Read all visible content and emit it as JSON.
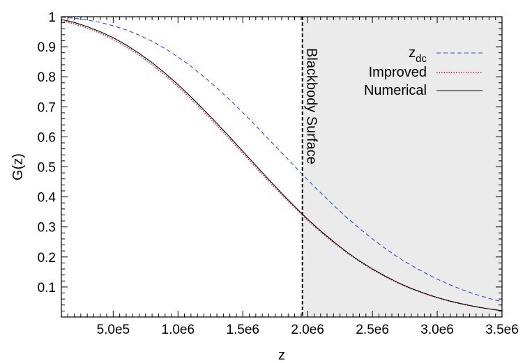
{
  "chart_data": {
    "type": "line",
    "title": "",
    "xlabel": "z",
    "ylabel": "G(z)",
    "xlim": [
      100000,
      3500000
    ],
    "ylim": [
      0,
      1
    ],
    "grid": false,
    "legend_position": "top-right",
    "x_ticks": [
      500000,
      1000000,
      1500000,
      2000000,
      2500000,
      3000000,
      3500000
    ],
    "x_tick_labels": [
      "5.0e5",
      "1.0e6",
      "1.5e6",
      "2.0e6",
      "2.5e6",
      "3.0e6",
      "3.5e6"
    ],
    "y_ticks": [
      0.1,
      0.2,
      0.3,
      0.4,
      0.5,
      0.6,
      0.7,
      0.8,
      0.9,
      1
    ],
    "y_tick_labels": [
      "0.1",
      "0.2",
      "0.3",
      "0.4",
      "0.5",
      "0.6",
      "0.7",
      "0.8",
      "0.9",
      "1"
    ],
    "shaded_region": {
      "x_from": 1960000,
      "x_to": 3500000,
      "color": "#ebebeb"
    },
    "vline": {
      "x": 1960000,
      "label": "Blackbody Surface"
    },
    "series": [
      {
        "name": "z_dc",
        "name_main": "z",
        "name_sub": "dc",
        "color": "#2b4ce6",
        "style": "dashed",
        "x": [
          100000,
          200000,
          300000,
          400000,
          500000,
          600000,
          700000,
          800000,
          900000,
          1000000,
          1100000,
          1200000,
          1300000,
          1400000,
          1500000,
          1600000,
          1700000,
          1800000,
          1900000,
          2000000,
          2100000,
          2200000,
          2300000,
          2400000,
          2500000,
          2600000,
          2700000,
          2800000,
          2900000,
          3000000,
          3100000,
          3200000,
          3300000,
          3400000,
          3500000
        ],
        "y": [
          0.998,
          0.995,
          0.989,
          0.981,
          0.97,
          0.956,
          0.939,
          0.918,
          0.894,
          0.866,
          0.835,
          0.8,
          0.763,
          0.723,
          0.681,
          0.637,
          0.592,
          0.547,
          0.502,
          0.457,
          0.414,
          0.372,
          0.332,
          0.295,
          0.26,
          0.228,
          0.198,
          0.172,
          0.148,
          0.126,
          0.107,
          0.09,
          0.075,
          0.062,
          0.051
        ]
      },
      {
        "name": "Improved",
        "color": "#e0201b",
        "style": "dotted",
        "x": [
          100000,
          200000,
          300000,
          400000,
          500000,
          600000,
          700000,
          800000,
          900000,
          1000000,
          1100000,
          1200000,
          1300000,
          1400000,
          1500000,
          1600000,
          1700000,
          1800000,
          1900000,
          2000000,
          2100000,
          2200000,
          2300000,
          2400000,
          2500000,
          2600000,
          2700000,
          2800000,
          2900000,
          3000000,
          3100000,
          3200000,
          3300000,
          3400000,
          3500000
        ],
        "y": [
          0.987,
          0.976,
          0.962,
          0.945,
          0.924,
          0.9,
          0.872,
          0.84,
          0.805,
          0.767,
          0.726,
          0.683,
          0.638,
          0.592,
          0.545,
          0.498,
          0.452,
          0.407,
          0.364,
          0.322,
          0.284,
          0.248,
          0.215,
          0.185,
          0.158,
          0.134,
          0.113,
          0.094,
          0.078,
          0.064,
          0.052,
          0.042,
          0.034,
          0.027,
          0.021
        ]
      },
      {
        "name": "Numerical",
        "color": "#000000",
        "style": "solid",
        "x": [
          100000,
          200000,
          300000,
          400000,
          500000,
          600000,
          700000,
          800000,
          900000,
          1000000,
          1100000,
          1200000,
          1300000,
          1400000,
          1500000,
          1600000,
          1700000,
          1800000,
          1900000,
          2000000,
          2100000,
          2200000,
          2300000,
          2400000,
          2500000,
          2600000,
          2700000,
          2800000,
          2900000,
          3000000,
          3100000,
          3200000,
          3300000,
          3400000,
          3500000
        ],
        "y": [
          0.991,
          0.981,
          0.967,
          0.95,
          0.93,
          0.906,
          0.878,
          0.847,
          0.812,
          0.774,
          0.733,
          0.69,
          0.645,
          0.599,
          0.552,
          0.505,
          0.458,
          0.412,
          0.368,
          0.326,
          0.287,
          0.251,
          0.217,
          0.187,
          0.16,
          0.136,
          0.114,
          0.095,
          0.079,
          0.065,
          0.053,
          0.043,
          0.034,
          0.027,
          0.021
        ]
      }
    ]
  }
}
